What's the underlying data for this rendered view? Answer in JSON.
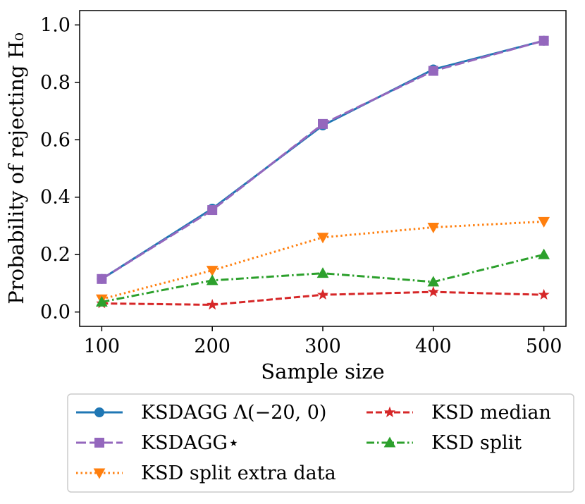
{
  "chart_data": {
    "type": "line",
    "title": "",
    "xlabel": "Sample size",
    "ylabel": "Probability of rejecting H₀",
    "x": [
      100,
      200,
      300,
      400,
      500
    ],
    "xlim": [
      80,
      520
    ],
    "ylim": [
      -0.05,
      1.05
    ],
    "xticks": [
      "100",
      "200",
      "300",
      "400",
      "500"
    ],
    "yticks": [
      "0.0",
      "0.2",
      "0.4",
      "0.6",
      "0.8",
      "1.0"
    ],
    "grid": false,
    "legend_position": "below",
    "series": [
      {
        "name": "KSDAGG Λ(−20, 0)",
        "values": [
          0.115,
          0.36,
          0.65,
          0.845,
          0.945
        ],
        "color": "#1f77b4",
        "dash": "solid",
        "marker": "circle"
      },
      {
        "name": "KSDAGG⋆",
        "values": [
          0.115,
          0.355,
          0.655,
          0.84,
          0.945
        ],
        "color": "#9467bd",
        "dash": "long-dash",
        "marker": "square"
      },
      {
        "name": "KSD split extra data",
        "values": [
          0.045,
          0.145,
          0.26,
          0.295,
          0.315
        ],
        "color": "#ff7f0e",
        "dash": "dotted",
        "marker": "triangle-down"
      },
      {
        "name": "KSD median",
        "values": [
          0.03,
          0.025,
          0.06,
          0.07,
          0.06
        ],
        "color": "#d62728",
        "dash": "dashed",
        "marker": "star"
      },
      {
        "name": "KSD split",
        "values": [
          0.035,
          0.11,
          0.135,
          0.105,
          0.2
        ],
        "color": "#2ca02c",
        "dash": "dash-dot",
        "marker": "triangle-up"
      }
    ]
  }
}
